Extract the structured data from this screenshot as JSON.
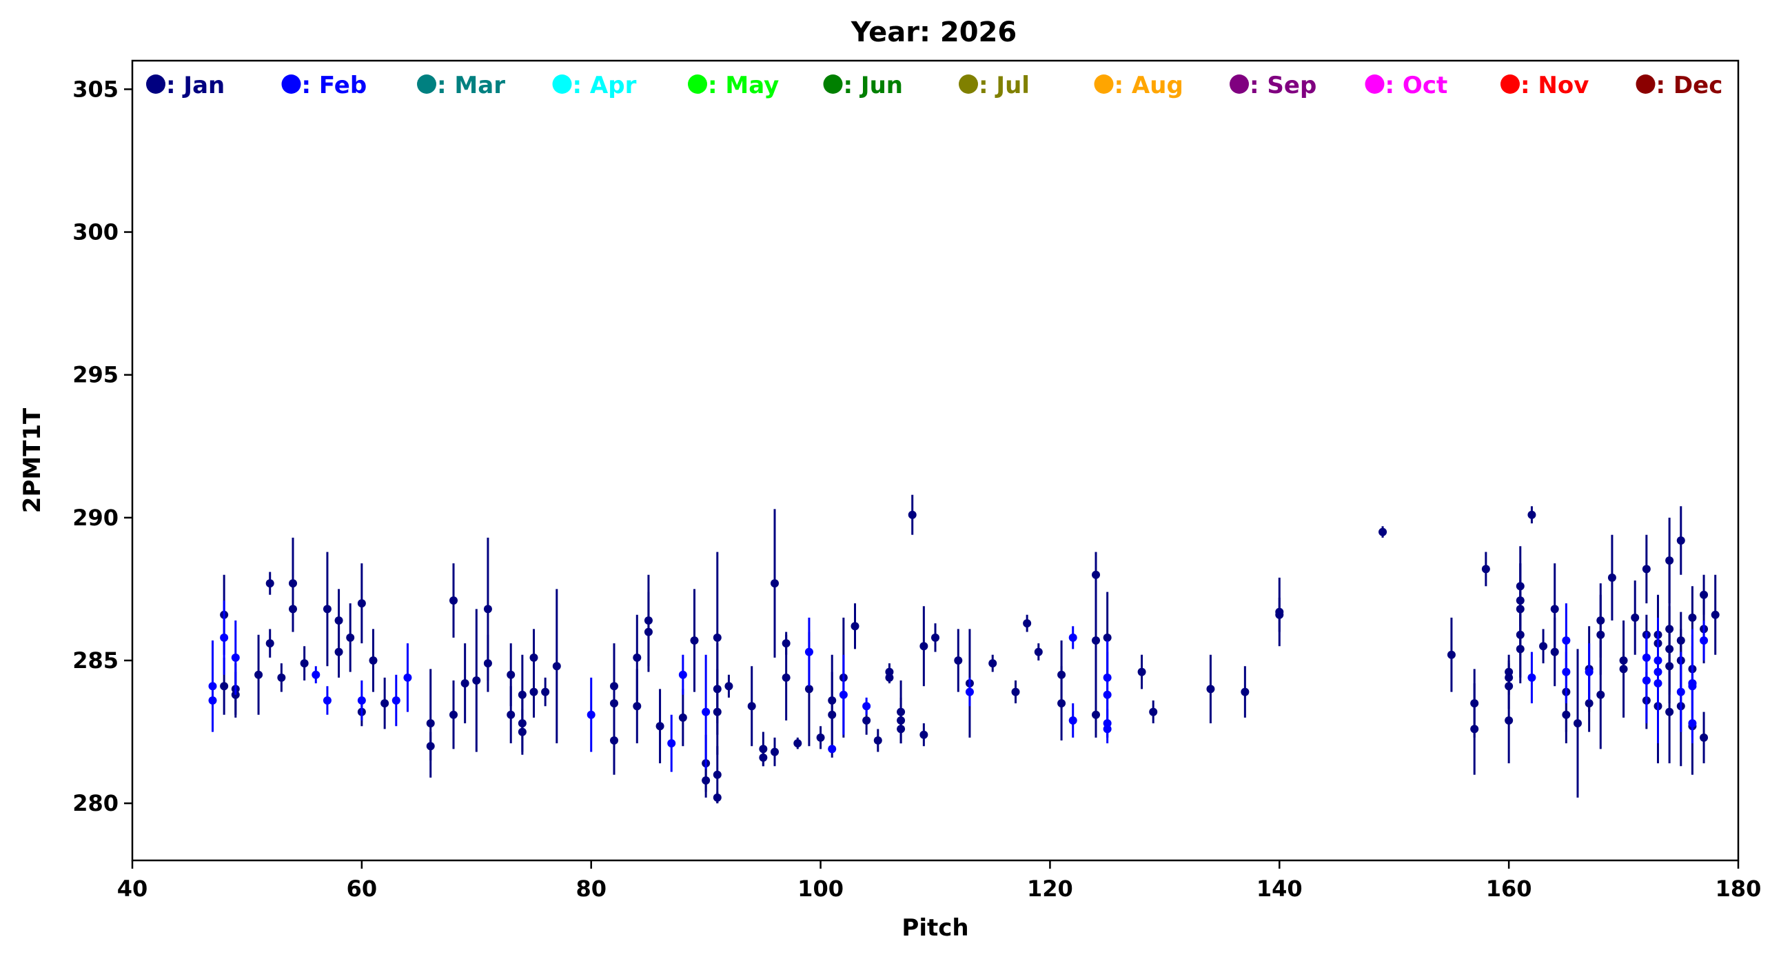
{
  "chart_data": {
    "type": "scatter",
    "title": "Year: 2026",
    "xlabel": "Pitch",
    "ylabel": "2PMT1T",
    "xlim": [
      40,
      180
    ],
    "ylim": [
      278,
      306
    ],
    "x_ticks": [
      40,
      60,
      80,
      100,
      120,
      140,
      160,
      180
    ],
    "y_ticks": [
      280,
      285,
      290,
      295,
      300,
      305
    ],
    "grid": false,
    "legend_placement": "top, single row",
    "legend": [
      {
        "label": ": Jan",
        "color": "#000080"
      },
      {
        "label": ": Feb",
        "color": "#0000ff"
      },
      {
        "label": ": Mar",
        "color": "#008080"
      },
      {
        "label": ": Apr",
        "color": "#00ffff"
      },
      {
        "label": ": May",
        "color": "#00ff00"
      },
      {
        "label": ": Jun",
        "color": "#008000"
      },
      {
        "label": ": Jul",
        "color": "#808000"
      },
      {
        "label": ": Aug",
        "color": "#ffa500"
      },
      {
        "label": ": Sep",
        "color": "#800080"
      },
      {
        "label": ": Oct",
        "color": "#ff00ff"
      },
      {
        "label": ": Nov",
        "color": "#ff0000"
      },
      {
        "label": ": Dec",
        "color": "#8b0000"
      }
    ],
    "series": [
      {
        "month": "Jan",
        "color": "#000080",
        "points": [
          [
            48,
            286.6,
            1.4
          ],
          [
            48,
            284.1,
            1.0
          ],
          [
            49,
            283.8,
            0.8
          ],
          [
            49,
            284.0,
            0.9
          ],
          [
            51,
            284.5,
            1.4
          ],
          [
            52,
            287.7,
            0.4
          ],
          [
            52,
            285.6,
            0.5
          ],
          [
            53,
            284.4,
            0.5
          ],
          [
            54,
            287.7,
            1.6
          ],
          [
            54,
            286.8,
            0.8
          ],
          [
            55,
            284.9,
            0.6
          ],
          [
            57,
            286.8,
            2.0
          ],
          [
            58,
            286.4,
            1.1
          ],
          [
            58,
            285.3,
            0.9
          ],
          [
            59,
            285.8,
            1.2
          ],
          [
            60,
            287.0,
            1.4
          ],
          [
            60,
            283.2,
            0.5
          ],
          [
            61,
            285.0,
            1.1
          ],
          [
            62,
            283.5,
            0.9
          ],
          [
            66,
            282.8,
            1.9
          ],
          [
            66,
            282.0,
            0.5
          ],
          [
            68,
            287.1,
            1.3
          ],
          [
            68,
            283.1,
            1.2
          ],
          [
            69,
            284.2,
            1.4
          ],
          [
            70,
            284.3,
            2.5
          ],
          [
            71,
            286.8,
            2.5
          ],
          [
            71,
            284.9,
            1.0
          ],
          [
            73,
            284.5,
            1.1
          ],
          [
            73,
            283.1,
            1.0
          ],
          [
            74,
            283.8,
            1.4
          ],
          [
            74,
            282.8,
            1.0
          ],
          [
            74,
            282.5,
            0.8
          ],
          [
            75,
            285.1,
            1.0
          ],
          [
            75,
            283.9,
            0.9
          ],
          [
            76,
            283.9,
            0.5
          ],
          [
            77,
            284.8,
            2.7
          ],
          [
            82,
            284.1,
            1.5
          ],
          [
            82,
            283.5,
            1.6
          ],
          [
            82,
            282.2,
            1.2
          ],
          [
            84,
            285.1,
            1.5
          ],
          [
            84,
            283.4,
            1.3
          ],
          [
            85,
            286.4,
            1.6
          ],
          [
            85,
            286.0,
            1.4
          ],
          [
            86,
            282.7,
            1.3
          ],
          [
            88,
            283.0,
            1.0
          ],
          [
            89,
            285.7,
            1.8
          ],
          [
            90,
            281.4,
            1.0
          ],
          [
            90,
            280.8,
            0.6
          ],
          [
            91,
            285.8,
            3.0
          ],
          [
            91,
            284.0,
            1.6
          ],
          [
            91,
            283.2,
            1.5
          ],
          [
            91,
            281.0,
            1.0
          ],
          [
            91,
            280.2,
            0.2
          ],
          [
            92,
            284.1,
            0.4
          ],
          [
            94,
            283.4,
            1.4
          ],
          [
            95,
            281.9,
            0.6
          ],
          [
            95,
            281.6,
            0.3
          ],
          [
            96,
            287.7,
            2.6
          ],
          [
            96,
            281.8,
            0.5
          ],
          [
            97,
            285.6,
            0.4
          ],
          [
            97,
            284.4,
            1.5
          ],
          [
            98,
            282.1,
            0.2
          ],
          [
            99,
            284.0,
            2.0
          ],
          [
            100,
            282.3,
            0.4
          ],
          [
            101,
            283.6,
            1.6
          ],
          [
            101,
            283.1,
            1.5
          ],
          [
            102,
            284.4,
            2.1
          ],
          [
            103,
            286.2,
            0.8
          ],
          [
            104,
            282.9,
            0.5
          ],
          [
            105,
            282.2,
            0.4
          ],
          [
            106,
            284.6,
            0.3
          ],
          [
            106,
            284.4,
            0.2
          ],
          [
            107,
            283.2,
            1.1
          ],
          [
            107,
            282.9,
            0.8
          ],
          [
            107,
            282.6,
            0.5
          ],
          [
            108,
            290.1,
            0.7
          ],
          [
            109,
            285.5,
            1.4
          ],
          [
            109,
            282.4,
            0.4
          ],
          [
            110,
            285.8,
            0.5
          ],
          [
            112,
            285.0,
            1.1
          ],
          [
            113,
            284.2,
            1.9
          ],
          [
            115,
            284.9,
            0.3
          ],
          [
            117,
            283.9,
            0.4
          ],
          [
            118,
            286.3,
            0.3
          ],
          [
            119,
            285.3,
            0.3
          ],
          [
            121,
            284.5,
            1.2
          ],
          [
            121,
            283.5,
            1.3
          ],
          [
            124,
            288.0,
            0.8
          ],
          [
            124,
            285.7,
            2.6
          ],
          [
            124,
            283.1,
            0.8
          ],
          [
            125,
            285.8,
            1.6
          ],
          [
            128,
            284.6,
            0.6
          ],
          [
            129,
            283.2,
            0.4
          ],
          [
            134,
            284.0,
            1.2
          ],
          [
            137,
            283.9,
            0.9
          ],
          [
            140,
            286.7,
            1.2
          ],
          [
            140,
            286.6,
            0.6
          ],
          [
            149,
            289.5,
            0.2
          ],
          [
            155,
            285.2,
            1.3
          ],
          [
            157,
            283.5,
            1.2
          ],
          [
            157,
            282.6,
            1.6
          ],
          [
            158,
            288.2,
            0.6
          ],
          [
            160,
            284.6,
            0.6
          ],
          [
            160,
            284.4,
            0.6
          ],
          [
            160,
            284.1,
            0.8
          ],
          [
            160,
            282.9,
            1.5
          ],
          [
            161,
            287.6,
            1.4
          ],
          [
            161,
            287.1,
            1.3
          ],
          [
            161,
            286.8,
            1.6
          ],
          [
            161,
            285.9,
            1.5
          ],
          [
            161,
            285.4,
            1.2
          ],
          [
            162,
            290.1,
            0.3
          ],
          [
            163,
            285.5,
            0.6
          ],
          [
            164,
            286.8,
            1.6
          ],
          [
            164,
            285.3,
            1.2
          ],
          [
            165,
            283.9,
            1.4
          ],
          [
            165,
            283.1,
            1.0
          ],
          [
            166,
            282.8,
            2.6
          ],
          [
            167,
            283.5,
            1.0
          ],
          [
            167,
            284.7,
            1.5
          ],
          [
            168,
            286.4,
            1.3
          ],
          [
            168,
            285.9,
            1.4
          ],
          [
            168,
            283.8,
            1.9
          ],
          [
            169,
            287.9,
            1.5
          ],
          [
            170,
            285.0,
            0.3
          ],
          [
            170,
            284.7,
            1.7
          ],
          [
            171,
            286.5,
            1.3
          ],
          [
            172,
            288.2,
            1.2
          ],
          [
            172,
            285.9,
            0.7
          ],
          [
            172,
            283.6,
            1.0
          ],
          [
            173,
            285.9,
            0.8
          ],
          [
            173,
            285.6,
            1.7
          ],
          [
            173,
            283.4,
            2.0
          ],
          [
            174,
            288.5,
            1.5
          ],
          [
            174,
            286.1,
            2.3
          ],
          [
            174,
            285.4,
            1.5
          ],
          [
            174,
            284.8,
            1.3
          ],
          [
            174,
            283.2,
            1.8
          ],
          [
            175,
            289.2,
            1.2
          ],
          [
            175,
            285.7,
            1.0
          ],
          [
            175,
            285.0,
            1.1
          ],
          [
            175,
            283.4,
            2.1
          ],
          [
            176,
            286.5,
            1.1
          ],
          [
            176,
            284.7,
            1.2
          ],
          [
            176,
            284.2,
            1.2
          ],
          [
            176,
            282.7,
            1.7
          ],
          [
            177,
            287.3,
            0.7
          ],
          [
            177,
            286.1,
            1.2
          ],
          [
            177,
            282.3,
            0.9
          ],
          [
            178,
            286.6,
            1.4
          ]
        ]
      },
      {
        "month": "Feb",
        "color": "#0000ff",
        "points": [
          [
            47,
            284.1,
            1.6
          ],
          [
            47,
            283.6,
            0.5
          ],
          [
            48,
            285.8,
            1.3
          ],
          [
            49,
            285.1,
            1.3
          ],
          [
            56,
            284.5,
            0.3
          ],
          [
            57,
            283.6,
            0.5
          ],
          [
            60,
            283.6,
            0.7
          ],
          [
            63,
            283.6,
            0.9
          ],
          [
            64,
            284.4,
            1.2
          ],
          [
            80,
            283.1,
            1.3
          ],
          [
            87,
            282.1,
            1.0
          ],
          [
            88,
            284.5,
            0.7
          ],
          [
            90,
            283.2,
            2.0
          ],
          [
            99,
            285.3,
            1.2
          ],
          [
            101,
            281.9,
            0.1
          ],
          [
            102,
            283.8,
            1.4
          ],
          [
            104,
            283.4,
            0.3
          ],
          [
            113,
            283.9,
            0.5
          ],
          [
            122,
            285.8,
            0.4
          ],
          [
            122,
            282.9,
            0.6
          ],
          [
            125,
            284.4,
            1.3
          ],
          [
            125,
            283.8,
            1.5
          ],
          [
            125,
            282.8,
            0.5
          ],
          [
            125,
            282.6,
            0.5
          ],
          [
            162,
            284.4,
            0.9
          ],
          [
            165,
            285.7,
            1.3
          ],
          [
            165,
            284.6,
            1.1
          ],
          [
            167,
            284.6,
            1.0
          ],
          [
            172,
            285.1,
            0.9
          ],
          [
            172,
            284.3,
            1.5
          ],
          [
            173,
            285.0,
            1.5
          ],
          [
            173,
            284.6,
            1.8
          ],
          [
            173,
            284.2,
            2.1
          ],
          [
            175,
            283.9,
            1.4
          ],
          [
            176,
            284.1,
            1.4
          ],
          [
            176,
            284.2,
            1.9
          ],
          [
            176,
            282.8,
            0.7
          ],
          [
            177,
            285.7,
            0.7
          ]
        ]
      }
    ]
  }
}
